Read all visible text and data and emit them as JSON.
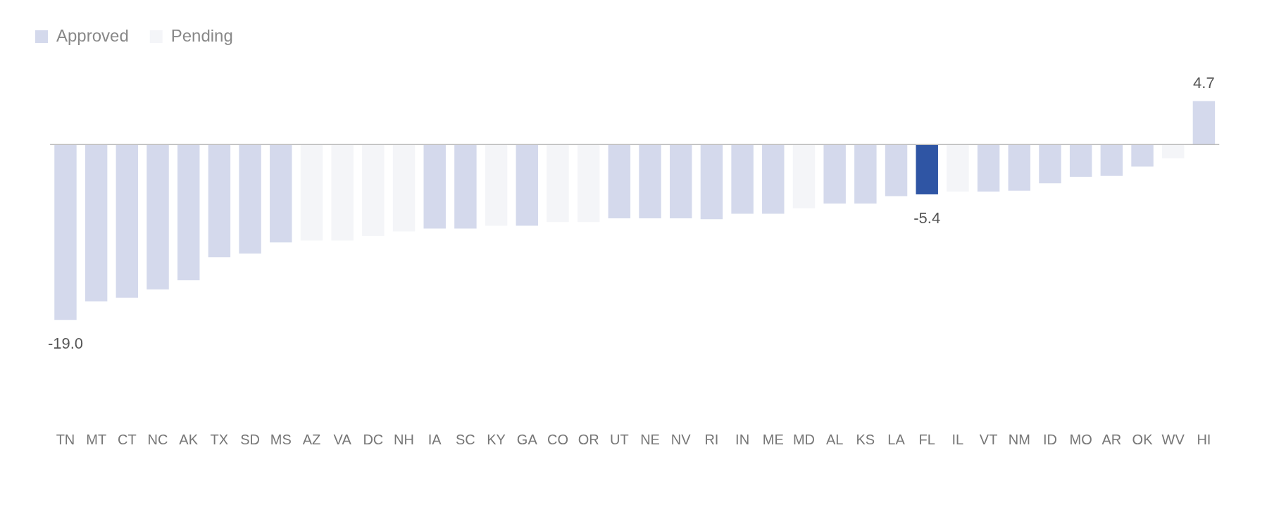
{
  "chart_data": {
    "type": "bar",
    "stacked": true,
    "legend": "top left",
    "tick_labels": "x",
    "grid": false,
    "categories": [
      "TN",
      "MT",
      "CT",
      "NC",
      "AK",
      "TX",
      "SD",
      "MS",
      "AZ",
      "VA",
      "DC",
      "NH",
      "IA",
      "SC",
      "KY",
      "GA",
      "CO",
      "OR",
      "UT",
      "NE",
      "NV",
      "RI",
      "IN",
      "ME",
      "MD",
      "AL",
      "KS",
      "LA",
      "FL",
      "IL",
      "VT",
      "NM",
      "ID",
      "MO",
      "AR",
      "OK",
      "WV",
      "HI"
    ],
    "series": [
      {
        "name": "Approved",
        "color": "#d4d9ec",
        "colors": [
          "#d4d9ec",
          "#d4d9ec",
          "#d4d9ec",
          "#d4d9ec",
          "#d4d9ec",
          "#d4d9ec",
          "#d4d9ec",
          "#d4d9ec",
          null,
          null,
          null,
          null,
          "#d4d9ec",
          "#d4d9ec",
          null,
          "#d4d9ec",
          null,
          null,
          "#d4d9ec",
          "#d4d9ec",
          "#d4d9ec",
          "#d4d9ec",
          "#d4d9ec",
          "#d4d9ec",
          null,
          "#d4d9ec",
          "#d4d9ec",
          "#d4d9ec",
          "#2f55a4",
          null,
          "#d4d9ec",
          "#d4d9ec",
          "#d4d9ec",
          "#d4d9ec",
          "#d4d9ec",
          "#d4d9ec",
          null,
          "#d4d9ec"
        ],
        "values": [
          -19.0,
          -17.0,
          -16.6,
          -15.7,
          -14.7,
          -12.2,
          -11.8,
          -10.6,
          null,
          null,
          null,
          null,
          -9.1,
          -9.1,
          null,
          -8.8,
          null,
          null,
          -8.0,
          -8.0,
          -8.0,
          -8.1,
          -7.5,
          -7.5,
          null,
          -6.4,
          -6.4,
          -5.6,
          -5.4,
          null,
          -5.1,
          -5.0,
          -4.2,
          -3.5,
          -3.4,
          -2.4,
          null,
          4.7
        ],
        "value_labels": [
          "-19.0",
          null,
          null,
          null,
          null,
          null,
          null,
          null,
          null,
          null,
          null,
          null,
          null,
          null,
          null,
          null,
          null,
          null,
          null,
          null,
          null,
          null,
          null,
          null,
          null,
          null,
          null,
          null,
          "-5.4",
          null,
          null,
          null,
          null,
          null,
          null,
          null,
          null,
          "4.7"
        ]
      },
      {
        "name": "Pending",
        "color": "#f4f5f8",
        "values": [
          null,
          null,
          null,
          null,
          null,
          null,
          null,
          null,
          -10.4,
          -10.4,
          -9.9,
          -9.4,
          null,
          null,
          -8.8,
          null,
          -8.4,
          -8.4,
          null,
          null,
          null,
          null,
          null,
          null,
          -6.9,
          null,
          null,
          null,
          null,
          -5.1,
          null,
          null,
          null,
          null,
          null,
          null,
          -1.5,
          null
        ]
      }
    ]
  }
}
